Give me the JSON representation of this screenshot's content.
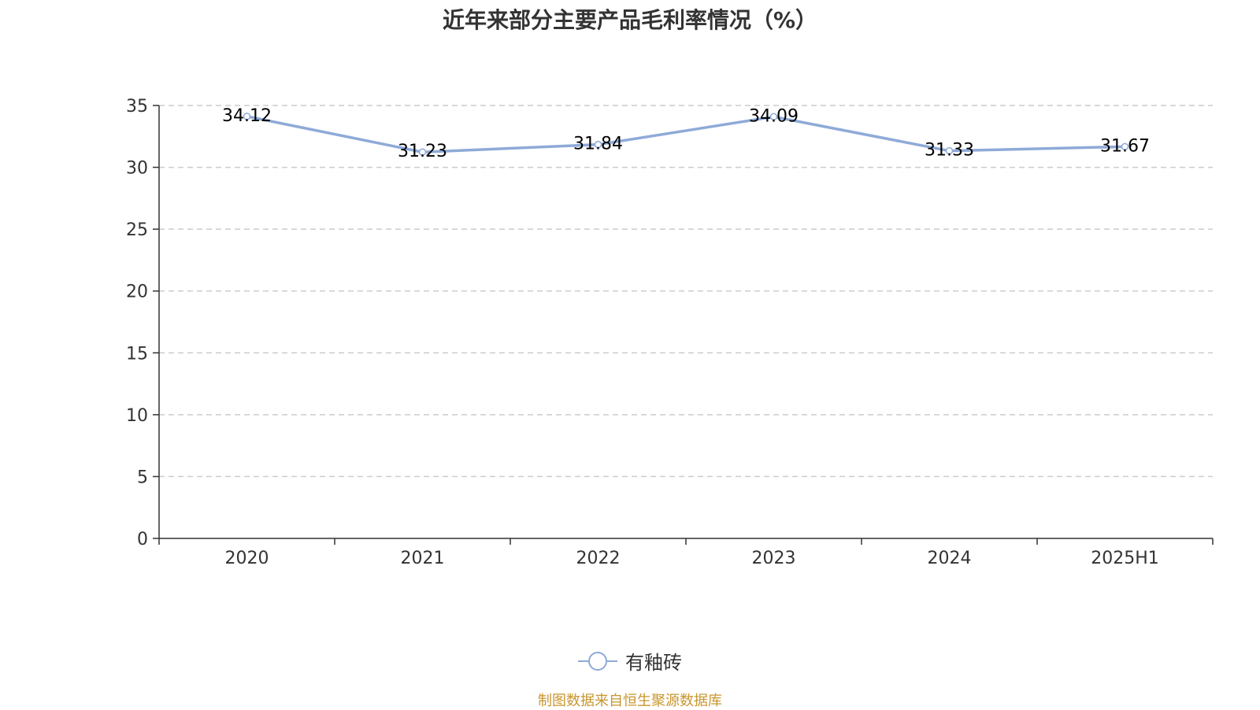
{
  "chart_data": {
    "type": "line",
    "title": "近年来部分主要产品毛利率情况（%）",
    "categories": [
      "2020",
      "2021",
      "2022",
      "2023",
      "2024",
      "2025H1"
    ],
    "series": [
      {
        "name": "有釉砖",
        "values": [
          34.12,
          31.23,
          31.84,
          34.09,
          31.33,
          31.67
        ],
        "labels": [
          "34.12",
          "31.23",
          "31.84",
          "34.09",
          "31.33",
          "31.67"
        ],
        "color": "#8eaad8"
      }
    ],
    "ylim": [
      0,
      35
    ],
    "yticks": [
      "0",
      "5",
      "10",
      "15",
      "20",
      "25",
      "30",
      "35"
    ],
    "xlabel": "",
    "ylabel": "",
    "grid": "horizontal-dashed",
    "legend": "bottom-center"
  },
  "source_note": "制图数据来自恒生聚源数据库"
}
